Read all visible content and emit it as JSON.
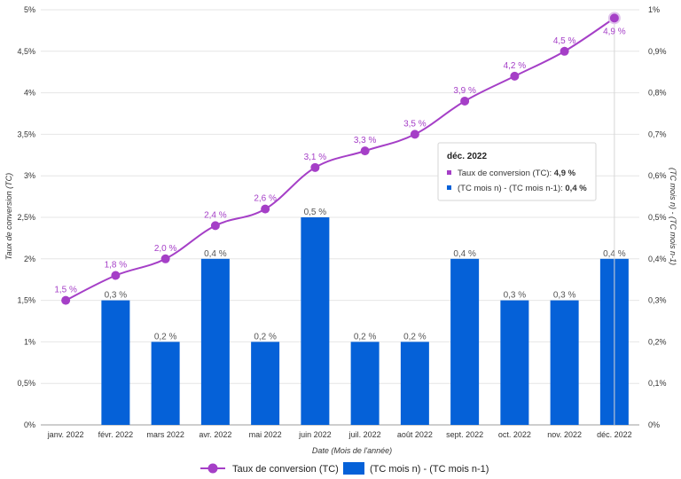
{
  "chart_data": {
    "type": "bar+line",
    "xlabel": "Date (Mois de l'année)",
    "ylabel_left": "Taux de conversion (TC)",
    "ylabel_right": "(TC mois n) - (TC mois n-1)",
    "ylim_left": [
      0,
      5
    ],
    "ylim_right": [
      0,
      1
    ],
    "left_ticks": [
      "0%",
      "0,5%",
      "1%",
      "1,5%",
      "2%",
      "2,5%",
      "3%",
      "3,5%",
      "4%",
      "4,5%",
      "5%"
    ],
    "right_ticks": [
      "0%",
      "0,1%",
      "0,2%",
      "0,3%",
      "0,4%",
      "0,5%",
      "0,6%",
      "0,7%",
      "0,8%",
      "0,9%",
      "1%"
    ],
    "categories": [
      "janv. 2022",
      "févr. 2022",
      "mars 2022",
      "avr. 2022",
      "mai 2022",
      "juin 2022",
      "juil. 2022",
      "août 2022",
      "sept. 2022",
      "oct. 2022",
      "nov. 2022",
      "déc. 2022"
    ],
    "series": [
      {
        "name": "Taux de conversion (TC)",
        "type": "line",
        "axis": "left",
        "color": "#a53fc7",
        "values": [
          1.5,
          1.8,
          2.0,
          2.4,
          2.6,
          3.1,
          3.3,
          3.5,
          3.9,
          4.2,
          4.5,
          4.9
        ],
        "labels": [
          "1,5 %",
          "1,8 %",
          "2,0 %",
          "2,4 %",
          "2,6 %",
          "3,1 %",
          "3,3 %",
          "3,5 %",
          "3,9 %",
          "4,2 %",
          "4,5 %",
          "4,9 %"
        ]
      },
      {
        "name": "(TC mois n) - (TC mois n-1)",
        "type": "bar",
        "axis": "right",
        "color": "#0561d8",
        "values": [
          null,
          0.3,
          0.2,
          0.4,
          0.2,
          0.5,
          0.2,
          0.2,
          0.4,
          0.3,
          0.3,
          0.4
        ],
        "labels": [
          "",
          "0,3 %",
          "0,2 %",
          "0,4 %",
          "0,2 %",
          "0,5 %",
          "0,2 %",
          "0,2 %",
          "0,4 %",
          "0,3 %",
          "0,3 %",
          "0,4 %"
        ]
      }
    ],
    "legend_position": "bottom",
    "tooltip": {
      "title": "déc. 2022",
      "rows": [
        {
          "label": "Taux de conversion (TC): ",
          "value": "4,9 %",
          "color": "#a53fc7"
        },
        {
          "label": "(TC mois n) - (TC mois n-1): ",
          "value": "0,4 %",
          "color": "#0561d8"
        }
      ]
    }
  }
}
